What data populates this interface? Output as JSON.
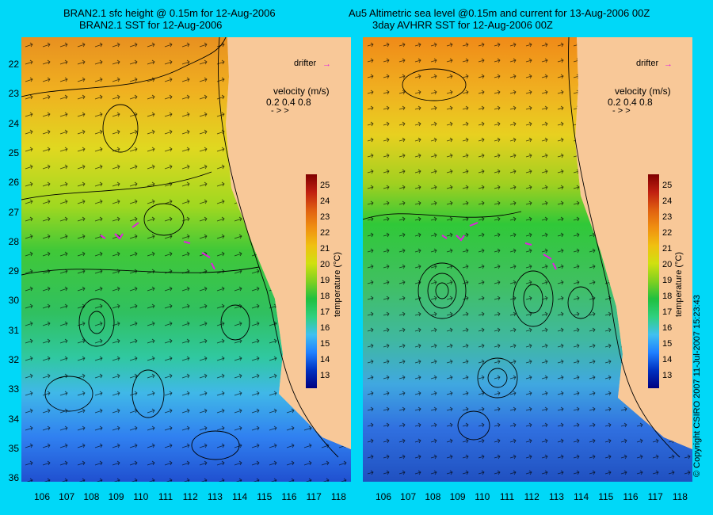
{
  "left_panel": {
    "title_line1": "BRAN2.1 sfc height @ 0.15m for 12-Aug-2006",
    "title_line2": "BRAN2.1 SST for 12-Aug-2006"
  },
  "right_panel": {
    "title_line1": "Au5 Altimetric sea level  @0.15m and current for 13-Aug-2006 00Z",
    "title_line2": "3day AVHRR SST for 12-Aug-2006 00Z"
  },
  "latitude_labels": [
    "22",
    "23",
    "24",
    "25",
    "26",
    "27",
    "28",
    "29",
    "30",
    "31",
    "32",
    "33",
    "34",
    "35",
    "36"
  ],
  "longitude_labels": [
    "106",
    "107",
    "108",
    "109",
    "110",
    "111",
    "112",
    "113",
    "114",
    "115",
    "116",
    "117",
    "118"
  ],
  "legend": {
    "drifter_label": "drifter",
    "velocity_label": "velocity (m/s)",
    "velocity_scale": "0.2 0.4 0.8",
    "velocity_arrows": "-  >  >"
  },
  "colorbar": {
    "title": "temperature (°C)",
    "ticks": [
      "25",
      "24",
      "23",
      "22",
      "21",
      "20",
      "19",
      "18",
      "17",
      "16",
      "15",
      "14",
      "13"
    ],
    "colors": [
      "#000080",
      "#0030c0",
      "#2080ff",
      "#40c0f0",
      "#30d080",
      "#20c040",
      "#80d020",
      "#d0e010",
      "#f0c010",
      "#f09010",
      "#e06010",
      "#c02010",
      "#800000"
    ]
  },
  "copyright": "© Copyright CSIRO 2007   11-Jul-2007 15:23:43"
}
